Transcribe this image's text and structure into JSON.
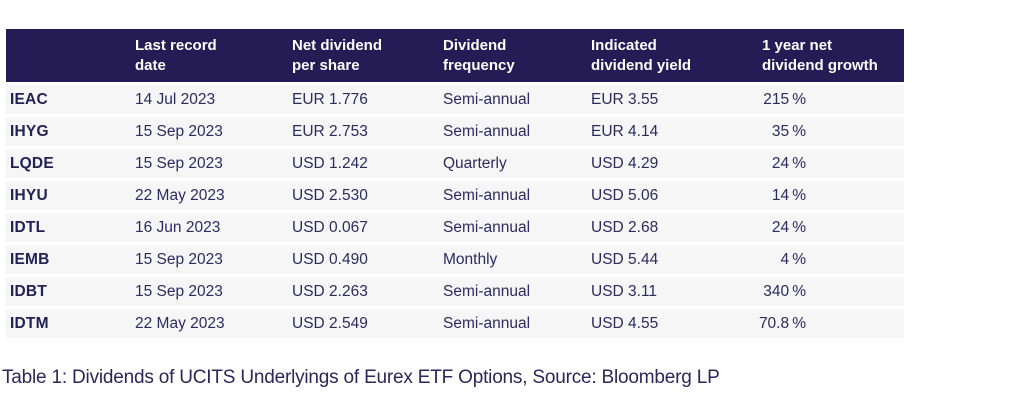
{
  "table": {
    "headers": {
      "ticker": "",
      "date": "Last record\ndate",
      "dps": "Net dividend\nper share",
      "freq": "Dividend\nfrequency",
      "yield": "Indicated\ndividend yield",
      "growth": "1 year net\ndividend growth"
    },
    "rows": [
      {
        "ticker": "IEAC",
        "date": "14 Jul 2023",
        "dps": "EUR 1.776",
        "freq": "Semi-annual",
        "yield": "EUR 3.55",
        "growth": "215 %"
      },
      {
        "ticker": "IHYG",
        "date": "15 Sep 2023",
        "dps": "EUR 2.753",
        "freq": "Semi-annual",
        "yield": "EUR 4.14",
        "growth": "35 %"
      },
      {
        "ticker": "LQDE",
        "date": "15 Sep 2023",
        "dps": "USD 1.242",
        "freq": "Quarterly",
        "yield": "USD 4.29",
        "growth": "24 %"
      },
      {
        "ticker": "IHYU",
        "date": "22 May 2023",
        "dps": "USD 2.530",
        "freq": "Semi-annual",
        "yield": "USD 5.06",
        "growth": "14 %"
      },
      {
        "ticker": "IDTL",
        "date": "16 Jun 2023",
        "dps": "USD 0.067",
        "freq": "Semi-annual",
        "yield": "USD 2.68",
        "growth": "24 %"
      },
      {
        "ticker": "IEMB",
        "date": "15 Sep 2023",
        "dps": "USD 0.490",
        "freq": "Monthly",
        "yield": "USD 5.44",
        "growth": "4 %"
      },
      {
        "ticker": "IDBT",
        "date": "15 Sep 2023",
        "dps": "USD 2.263",
        "freq": "Semi-annual",
        "yield": "USD 3.11",
        "growth": "340 %"
      },
      {
        "ticker": "IDTM",
        "date": "22 May 2023",
        "dps": "USD 2.549",
        "freq": "Semi-annual",
        "yield": "USD 4.55",
        "growth": "70.8 %"
      }
    ],
    "caption": "Table 1: Dividends of UCITS Underlyings of Eurex ETF Options, Source: Bloomberg LP"
  },
  "colors": {
    "header_bg": "#251c55",
    "row_bg": "#f6f6f7",
    "body_text": "#2e2a5e",
    "header_text": "#fdfdfe"
  }
}
